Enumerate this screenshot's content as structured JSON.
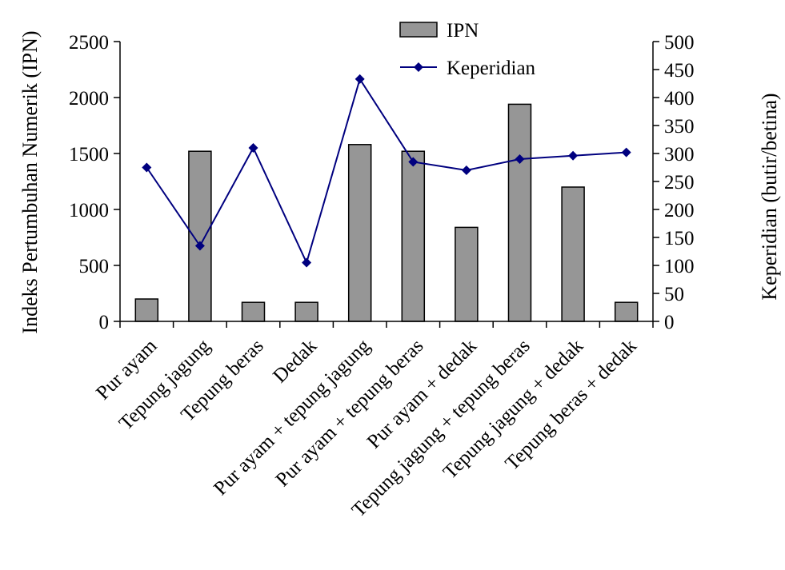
{
  "chart_data": {
    "type": "bar",
    "categories": [
      "Pur ayam",
      "Tepung jagung",
      "Tepung beras",
      "Dedak",
      "Pur ayam + tepung jagung",
      "Pur ayam + tepung beras",
      "Pur ayam + dedak",
      "Tepung jagung + tepung beras",
      "Tepung jagung +  dedak",
      "Tepung beras + dedak"
    ],
    "series": [
      {
        "name": "IPN",
        "type": "bar",
        "axis": "left",
        "values": [
          200,
          1520,
          170,
          170,
          1580,
          1520,
          840,
          1940,
          1200,
          170
        ]
      },
      {
        "name": "Keperidian",
        "type": "line",
        "axis": "right",
        "values": [
          275,
          135,
          310,
          105,
          433,
          285,
          270,
          290,
          296,
          302
        ]
      }
    ],
    "ylabel": "Indeks Pertumbuhan Numerik (IPN)",
    "y2label": "Keperidian (butir/betina)",
    "ylim": [
      0,
      2500
    ],
    "y2lim": [
      0,
      500
    ],
    "yticks": [
      "0",
      "500",
      "1000",
      "1500",
      "2000",
      "2500"
    ],
    "y2ticks": [
      "0",
      "50",
      "100",
      "150",
      "200",
      "250",
      "300",
      "350",
      "400",
      "450",
      "500"
    ],
    "legend_position": "top-center",
    "grid": false,
    "colors": {
      "bar_fill": "#969696",
      "bar_stroke": "#000000",
      "line": "#00007f",
      "marker": "#00007f"
    }
  }
}
